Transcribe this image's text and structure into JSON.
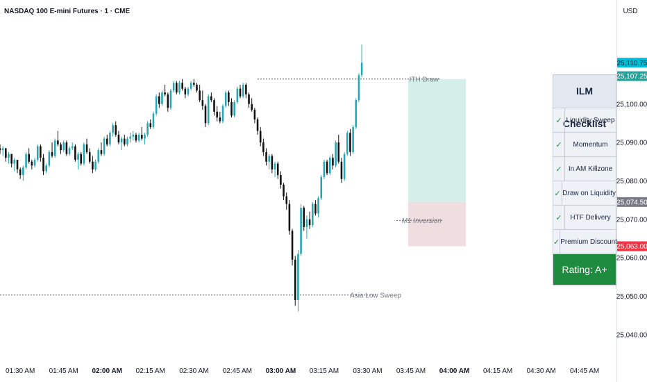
{
  "header": {
    "title": "NASDAQ 100 E-mini Futures · 1 · CME",
    "currency": "USD"
  },
  "checklist": {
    "title": "ILM Checklist",
    "check_glyph": "✓",
    "items": [
      "Liquidity Sweep",
      "Momentum",
      "In AM Killzone",
      "Draw on Liquidity",
      "HTF Delivery",
      "Premium Discount"
    ],
    "rating": "Rating: A+"
  },
  "colors": {
    "up": "#26a6b5",
    "down": "#111111",
    "tp_zone": "#d5efe8",
    "sl_zone": "#f0dde0",
    "tag_cyan": "#00bcd4",
    "tag_teal": "#22a69a",
    "tag_grey": "#787b86",
    "tag_red": "#f23645",
    "rating_green": "#1e8b3f"
  },
  "chart_data": {
    "type": "candlestick",
    "y_axis": {
      "ticks": [
        "25,040.00",
        "25,050.00",
        "25,060.00",
        "25,070.00",
        "25,080.00",
        "25,090.00",
        "25,100.00"
      ],
      "ylim": [
        25034,
        25122
      ]
    },
    "x_axis": {
      "ticks": [
        "01:30 AM",
        "01:45 AM",
        "02:00 AM",
        "02:15 AM",
        "02:30 AM",
        "02:45 AM",
        "03:00 AM",
        "03:15 AM",
        "03:30 AM",
        "03:45 AM",
        "04:00 AM",
        "04:15 AM",
        "04:30 AM",
        "04:45 AM"
      ],
      "bold": [
        "02:00 AM",
        "03:00 AM",
        "04:00 AM"
      ],
      "xlim": [
        "01:23 AM",
        "04:56 AM"
      ]
    },
    "price_tags": [
      {
        "label": "25,110.75",
        "value": 25110.75,
        "color": "cyan"
      },
      {
        "label": "25,107.25",
        "value": 25107.25,
        "color": "teal"
      },
      {
        "label": "25,074.50",
        "value": 25074.5,
        "color": "grey"
      },
      {
        "label": "25,063.00",
        "value": 25063.0,
        "color": "red"
      }
    ],
    "levels": [
      {
        "label": "ITH Draw",
        "value": 25106.5,
        "from": "02:52 AM",
        "to": "03:55 AM",
        "style": "dotted"
      },
      {
        "label": "Asia Low Sweep",
        "value": 25050.3,
        "from": "01:23 AM",
        "to": "03:33 AM",
        "style": "dotted"
      },
      {
        "label": "M1 Inversion",
        "value": 25069.7,
        "from": "03:40 AM",
        "to": "03:56 AM",
        "style": "dotted",
        "italic": true
      }
    ],
    "zones": [
      {
        "kind": "target",
        "from": "03:44 AM",
        "to": "04:04 AM",
        "top": 25106.5,
        "bottom": 25074.5
      },
      {
        "kind": "stop",
        "from": "03:44 AM",
        "to": "04:04 AM",
        "top": 25074.5,
        "bottom": 25063.0
      }
    ],
    "candles": {
      "start_time": "01:23 AM",
      "interval_minutes": 1,
      "ohlc": [
        [
          25088.5,
          25089.5,
          25087.0,
          25088.0
        ],
        [
          25088.0,
          25089.0,
          25086.5,
          25088.5
        ],
        [
          25088.5,
          25088.5,
          25085.0,
          25086.0
        ],
        [
          25086.0,
          25087.5,
          25084.5,
          25087.0
        ],
        [
          25087.0,
          25087.0,
          25083.5,
          25084.5
        ],
        [
          25084.5,
          25086.0,
          25082.5,
          25085.5
        ],
        [
          25085.5,
          25085.5,
          25082.0,
          25083.0
        ],
        [
          25083.0,
          25083.5,
          25080.5,
          25081.5
        ],
        [
          25081.5,
          25084.0,
          25080.0,
          25083.5
        ],
        [
          25083.5,
          25087.5,
          25083.0,
          25087.0
        ],
        [
          25087.0,
          25088.5,
          25084.5,
          25085.0
        ],
        [
          25085.0,
          25085.5,
          25083.0,
          25084.0
        ],
        [
          25084.0,
          25086.0,
          25083.5,
          25085.5
        ],
        [
          25085.5,
          25089.5,
          25085.0,
          25089.0
        ],
        [
          25089.0,
          25089.5,
          25085.0,
          25086.0
        ],
        [
          25086.0,
          25087.0,
          25081.5,
          25082.5
        ],
        [
          25082.5,
          25084.5,
          25082.0,
          25084.0
        ],
        [
          25084.0,
          25088.0,
          25083.5,
          25087.5
        ],
        [
          25087.5,
          25090.0,
          25086.0,
          25086.5
        ],
        [
          25086.5,
          25091.0,
          25086.0,
          25090.5
        ],
        [
          25090.5,
          25093.0,
          25089.0,
          25089.5
        ],
        [
          25089.5,
          25090.0,
          25087.0,
          25088.0
        ],
        [
          25088.0,
          25090.5,
          25087.5,
          25090.0
        ],
        [
          25090.0,
          25090.5,
          25086.5,
          25087.0
        ],
        [
          25087.0,
          25089.0,
          25086.5,
          25088.5
        ],
        [
          25088.5,
          25090.0,
          25088.0,
          25089.0
        ],
        [
          25089.0,
          25089.5,
          25085.0,
          25085.5
        ],
        [
          25085.5,
          25087.5,
          25083.0,
          25087.0
        ],
        [
          25087.0,
          25087.5,
          25084.0,
          25084.5
        ],
        [
          25084.5,
          25090.0,
          25084.0,
          25089.5
        ],
        [
          25089.5,
          25091.0,
          25087.0,
          25087.5
        ],
        [
          25087.5,
          25088.5,
          25084.5,
          25085.0
        ],
        [
          25085.0,
          25086.5,
          25082.0,
          25083.0
        ],
        [
          25083.0,
          25085.5,
          25082.5,
          25085.0
        ],
        [
          25085.0,
          25088.5,
          25084.5,
          25088.0
        ],
        [
          25088.0,
          25090.0,
          25086.5,
          25087.0
        ],
        [
          25087.0,
          25091.5,
          25086.5,
          25091.0
        ],
        [
          25091.0,
          25092.0,
          25089.0,
          25089.5
        ],
        [
          25089.5,
          25093.0,
          25089.0,
          25092.5
        ],
        [
          25092.5,
          25095.0,
          25091.5,
          25094.5
        ],
        [
          25094.5,
          25095.5,
          25091.5,
          25092.0
        ],
        [
          25092.0,
          25093.0,
          25089.5,
          25090.0
        ],
        [
          25090.0,
          25091.5,
          25088.0,
          25091.0
        ],
        [
          25091.0,
          25092.0,
          25089.0,
          25089.5
        ],
        [
          25089.5,
          25091.5,
          25089.0,
          25091.0
        ],
        [
          25091.0,
          25092.5,
          25090.0,
          25091.5
        ],
        [
          25091.5,
          25093.0,
          25090.5,
          25092.0
        ],
        [
          25092.0,
          25092.5,
          25090.0,
          25090.5
        ],
        [
          25090.5,
          25092.5,
          25090.0,
          25092.0
        ],
        [
          25092.0,
          25094.0,
          25090.5,
          25091.0
        ],
        [
          25091.0,
          25092.5,
          25089.5,
          25092.0
        ],
        [
          25092.0,
          25095.5,
          25091.5,
          25095.0
        ],
        [
          25095.0,
          25096.0,
          25093.5,
          25094.0
        ],
        [
          25094.0,
          25098.0,
          25093.5,
          25097.5
        ],
        [
          25097.5,
          25102.5,
          25097.0,
          25102.0
        ],
        [
          25102.0,
          25103.0,
          25099.0,
          25100.0
        ],
        [
          25100.0,
          25103.5,
          25099.5,
          25103.0
        ],
        [
          25103.0,
          25105.0,
          25102.0,
          25102.5
        ],
        [
          25102.5,
          25103.0,
          25098.0,
          25099.0
        ],
        [
          25099.0,
          25104.0,
          25098.5,
          25103.5
        ],
        [
          25103.5,
          25106.0,
          25103.0,
          25105.5
        ],
        [
          25105.5,
          25106.0,
          25102.5,
          25103.0
        ],
        [
          25103.0,
          25106.0,
          25102.5,
          25105.5
        ],
        [
          25105.5,
          25106.5,
          25103.5,
          25104.0
        ],
        [
          25104.0,
          25104.5,
          25101.5,
          25102.5
        ],
        [
          25102.5,
          25104.5,
          25102.0,
          25104.0
        ],
        [
          25104.0,
          25106.0,
          25103.5,
          25105.5
        ],
        [
          25105.5,
          25106.5,
          25104.5,
          25105.0
        ],
        [
          25105.0,
          25105.5,
          25103.0,
          25103.5
        ],
        [
          25103.5,
          25105.0,
          25100.5,
          25101.0
        ],
        [
          25101.0,
          25103.5,
          25098.5,
          25099.5
        ],
        [
          25099.5,
          25100.0,
          25094.0,
          25095.0
        ],
        [
          25095.0,
          25102.5,
          25094.5,
          25102.0
        ],
        [
          25102.0,
          25103.0,
          25100.5,
          25101.0
        ],
        [
          25101.0,
          25101.5,
          25097.0,
          25098.0
        ],
        [
          25098.0,
          25099.5,
          25095.5,
          25096.5
        ],
        [
          25096.5,
          25098.0,
          25095.0,
          25095.5
        ],
        [
          25095.5,
          25100.0,
          25095.0,
          25099.5
        ],
        [
          25099.5,
          25103.5,
          25099.0,
          25103.0
        ],
        [
          25103.0,
          25103.5,
          25099.5,
          25100.5
        ],
        [
          25100.5,
          25101.5,
          25096.5,
          25097.0
        ],
        [
          25097.0,
          25101.0,
          25096.5,
          25100.5
        ],
        [
          25100.5,
          25104.5,
          25100.0,
          25104.0
        ],
        [
          25104.0,
          25105.0,
          25101.5,
          25102.0
        ],
        [
          25102.0,
          25105.5,
          25101.5,
          25105.0
        ],
        [
          25105.0,
          25105.5,
          25101.5,
          25102.5
        ],
        [
          25102.5,
          25103.0,
          25099.0,
          25100.0
        ],
        [
          25100.0,
          25101.5,
          25098.0,
          25098.5
        ],
        [
          25098.5,
          25099.0,
          25095.0,
          25096.0
        ],
        [
          25096.0,
          25096.5,
          25092.0,
          25093.0
        ],
        [
          25093.0,
          25094.0,
          25089.0,
          25090.0
        ],
        [
          25090.0,
          25091.0,
          25086.5,
          25087.5
        ],
        [
          25087.5,
          25088.5,
          25084.0,
          25085.0
        ],
        [
          25085.0,
          25087.0,
          25083.0,
          25086.5
        ],
        [
          25086.5,
          25087.0,
          25082.0,
          25083.0
        ],
        [
          25083.0,
          25085.0,
          25081.0,
          25084.5
        ],
        [
          25084.5,
          25085.0,
          25080.5,
          25081.5
        ],
        [
          25081.5,
          25082.5,
          25078.0,
          25079.0
        ],
        [
          25079.0,
          25079.5,
          25075.0,
          25076.0
        ],
        [
          25076.0,
          25077.0,
          25072.5,
          25074.0
        ],
        [
          25074.0,
          25075.0,
          25066.0,
          25067.0
        ],
        [
          25067.0,
          25067.5,
          25058.0,
          25059.5
        ],
        [
          25059.5,
          25060.5,
          25047.5,
          25049.0
        ],
        [
          25049.0,
          25062.0,
          25046.0,
          25061.0
        ],
        [
          25061.0,
          25074.0,
          25060.5,
          25073.0
        ],
        [
          25073.0,
          25073.5,
          25067.0,
          25068.0
        ],
        [
          25068.0,
          25071.0,
          25065.0,
          25070.0
        ],
        [
          25070.0,
          25072.0,
          25067.5,
          25068.5
        ],
        [
          25068.5,
          25074.5,
          25068.0,
          25074.0
        ],
        [
          25074.0,
          25075.0,
          25071.0,
          25071.5
        ],
        [
          25071.5,
          25076.0,
          25070.5,
          25075.5
        ],
        [
          25075.5,
          25081.5,
          25075.0,
          25081.0
        ],
        [
          25081.0,
          25085.5,
          25080.5,
          25085.0
        ],
        [
          25085.0,
          25085.5,
          25081.5,
          25082.0
        ],
        [
          25082.0,
          25086.5,
          25081.5,
          25086.0
        ],
        [
          25086.0,
          25087.0,
          25083.0,
          25084.0
        ],
        [
          25084.0,
          25090.5,
          25083.5,
          25090.0
        ],
        [
          25090.0,
          25092.0,
          25084.5,
          25085.0
        ],
        [
          25085.0,
          25086.0,
          25079.5,
          25080.5
        ],
        [
          25080.5,
          25087.5,
          25080.0,
          25087.0
        ],
        [
          25087.0,
          25093.0,
          25086.5,
          25092.5
        ],
        [
          25092.5,
          25093.5,
          25086.5,
          25087.5
        ],
        [
          25087.5,
          25094.5,
          25087.0,
          25094.0
        ],
        [
          25094.0,
          25101.5,
          25093.5,
          25101.0
        ],
        [
          25101.0,
          25108.0,
          25100.5,
          25107.5
        ],
        [
          25107.5,
          25115.5,
          25107.0,
          25110.75
        ]
      ]
    }
  }
}
